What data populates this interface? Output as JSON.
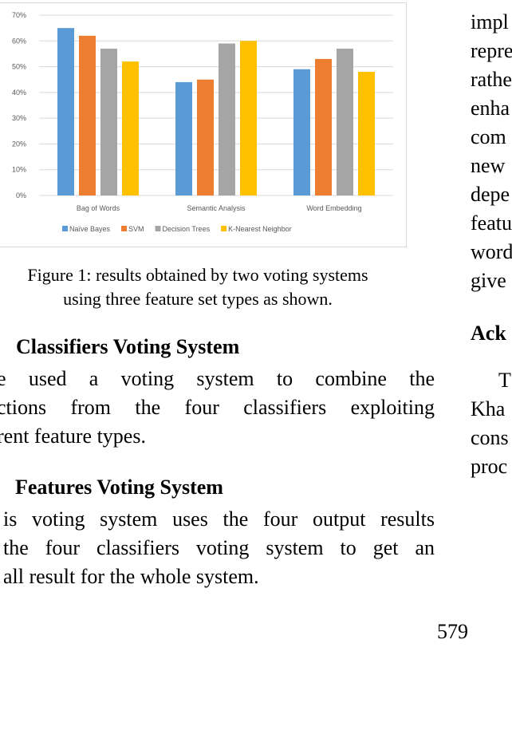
{
  "figure": {
    "caption_line1": "Figure 1: results obtained by two voting systems",
    "caption_line2": "using three feature set types as shown."
  },
  "chart_data": {
    "type": "bar",
    "categories": [
      "Bag of Words",
      "Semantic Analysis",
      "Word Embedding"
    ],
    "series": [
      {
        "name": "Naïve Bayes",
        "color": "#5b9bd5",
        "values": [
          65,
          44,
          49
        ]
      },
      {
        "name": "SVM",
        "color": "#ed7d31",
        "values": [
          62,
          45,
          53
        ]
      },
      {
        "name": "Decision Trees",
        "color": "#a5a5a5",
        "values": [
          57,
          59,
          57
        ]
      },
      {
        "name": "K-Nearest Neighbor",
        "color": "#ffc000",
        "values": [
          52,
          60,
          48
        ]
      }
    ],
    "yticks": [
      "0%",
      "10%",
      "20%",
      "30%",
      "40%",
      "50%",
      "60%",
      "70%"
    ],
    "ylim": [
      0,
      70
    ],
    "grid": true,
    "legend": "bottom"
  },
  "sections": [
    {
      "heading": "Classifiers Voting System",
      "lines": [
        "e used a voting system to combine the",
        "ctions from the four classifiers exploiting",
        "rent feature types."
      ]
    },
    {
      "heading": "Features Voting System",
      "lines": [
        "is voting system uses the four output results",
        "the four classifiers voting system to get an",
        "all result for the whole system."
      ]
    }
  ],
  "right_column": {
    "lines_top": [
      "impl",
      "repre",
      "rathe",
      "enha",
      "com",
      "new",
      "depe",
      "featu",
      "word",
      "give"
    ],
    "ack_heading": "Ack",
    "lines_bottom": [
      "T",
      "Kha",
      "cons",
      "proc"
    ]
  },
  "page_number": "579"
}
